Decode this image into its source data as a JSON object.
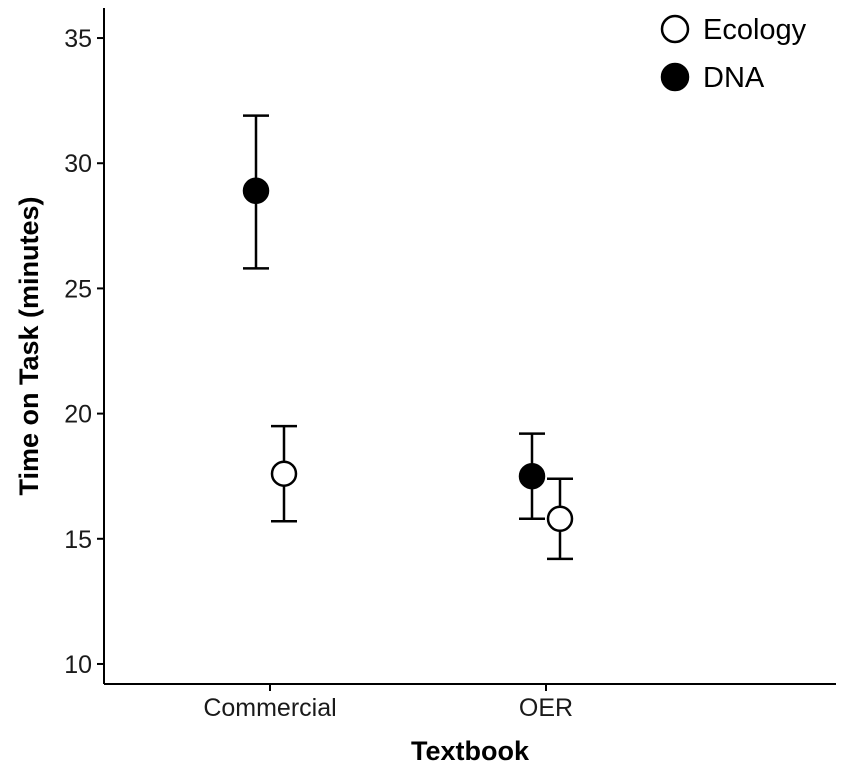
{
  "chart_data": {
    "type": "scatter",
    "title": "",
    "xlabel": "Textbook",
    "ylabel": "Time on Task (minutes)",
    "categories": [
      "Commercial",
      "OER"
    ],
    "ylim": [
      9.2,
      36.2
    ],
    "yticks": [
      10,
      15,
      20,
      25,
      30,
      35
    ],
    "grid": false,
    "legend_position": "top-right",
    "series": [
      {
        "name": "Ecology",
        "marker": "open-circle",
        "color": "#ffffff",
        "values": [
          17.6,
          15.8
        ],
        "err_low": [
          15.7,
          14.2
        ],
        "err_high": [
          19.5,
          17.4
        ]
      },
      {
        "name": "DNA",
        "marker": "filled-circle",
        "color": "#000000",
        "values": [
          28.9,
          17.5
        ],
        "err_low": [
          25.8,
          15.8
        ],
        "err_high": [
          31.9,
          19.2
        ]
      }
    ]
  }
}
